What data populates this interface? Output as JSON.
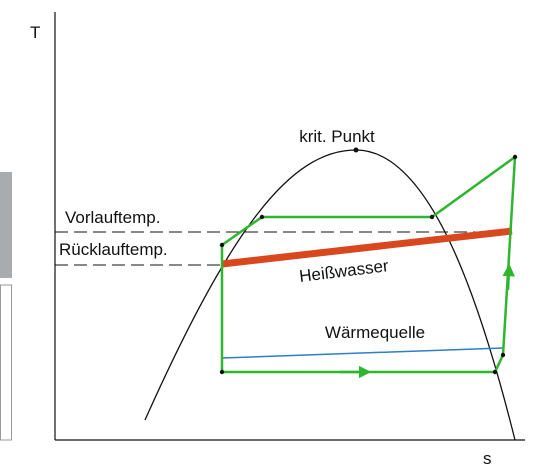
{
  "axes": {
    "y_label": "T",
    "x_label": "s"
  },
  "labels": {
    "critical_point": "krit. Punkt",
    "supply_temp": "Vorlauftemp.",
    "return_temp": "Rücklauftemp.",
    "hot_water": "Heißwasser",
    "heat_source": "Wärmequelle"
  }
}
